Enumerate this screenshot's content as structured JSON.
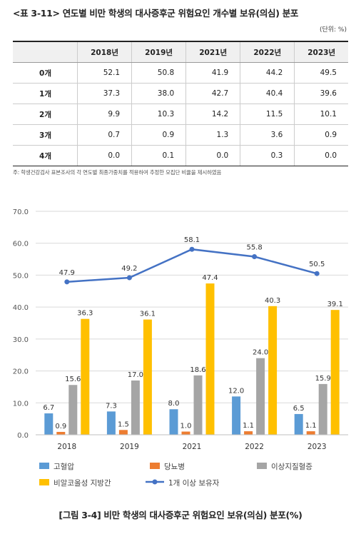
{
  "table": {
    "title": "<표 3-11> 연도별 비만 학생의 대사증후군 위험요인 개수별 보유(의심) 분포",
    "unit": "(단위: %)",
    "header_blank": "",
    "columns": [
      "2018년",
      "2019년",
      "2021년",
      "2022년",
      "2023년"
    ],
    "rows": [
      {
        "label": "0개",
        "values": [
          "52.1",
          "50.8",
          "41.9",
          "44.2",
          "49.5"
        ]
      },
      {
        "label": "1개",
        "values": [
          "37.3",
          "38.0",
          "42.7",
          "40.4",
          "39.6"
        ]
      },
      {
        "label": "2개",
        "values": [
          "9.9",
          "10.3",
          "14.2",
          "11.5",
          "10.1"
        ]
      },
      {
        "label": "3개",
        "values": [
          "0.7",
          "0.9",
          "1.3",
          "3.6",
          "0.9"
        ]
      },
      {
        "label": "4개",
        "values": [
          "0.0",
          "0.1",
          "0.0",
          "0.3",
          "0.0"
        ]
      }
    ],
    "note": "주: 학생건강검사 표본조사의 각 연도별 최종가중치를 적용하여 추정한 모집단 비율을 제시하였음"
  },
  "figure": {
    "caption": "[그림 3-4] 비만 학생의 대사증후군 위험요인 보유(의심) 분포(%)"
  },
  "chart_data": {
    "type": "bar",
    "categories": [
      "2018",
      "2019",
      "2021",
      "2022",
      "2023"
    ],
    "ylim": [
      0,
      70
    ],
    "yticks": [
      "0.0",
      "10.0",
      "20.0",
      "30.0",
      "40.0",
      "50.0",
      "60.0",
      "70.0"
    ],
    "grid": true,
    "legend_position": "bottom",
    "series": [
      {
        "name": "고혈압",
        "kind": "bar",
        "color": "#5b9bd5",
        "values": [
          6.7,
          7.3,
          8.0,
          12.0,
          6.5
        ]
      },
      {
        "name": "당뇨병",
        "kind": "bar",
        "color": "#ed7d31",
        "values": [
          0.9,
          1.5,
          1.0,
          1.1,
          1.1
        ]
      },
      {
        "name": "이상지질혈증",
        "kind": "bar",
        "color": "#a5a5a5",
        "values": [
          15.6,
          17.0,
          18.6,
          24.0,
          15.9
        ]
      },
      {
        "name": "비알코올성 지방간",
        "kind": "bar",
        "color": "#ffc000",
        "values": [
          36.3,
          36.1,
          47.4,
          40.3,
          39.1
        ]
      },
      {
        "name": "1개 이상 보유자",
        "kind": "line",
        "color": "#4472c4",
        "values": [
          47.9,
          49.2,
          58.1,
          55.8,
          50.5
        ]
      }
    ]
  }
}
